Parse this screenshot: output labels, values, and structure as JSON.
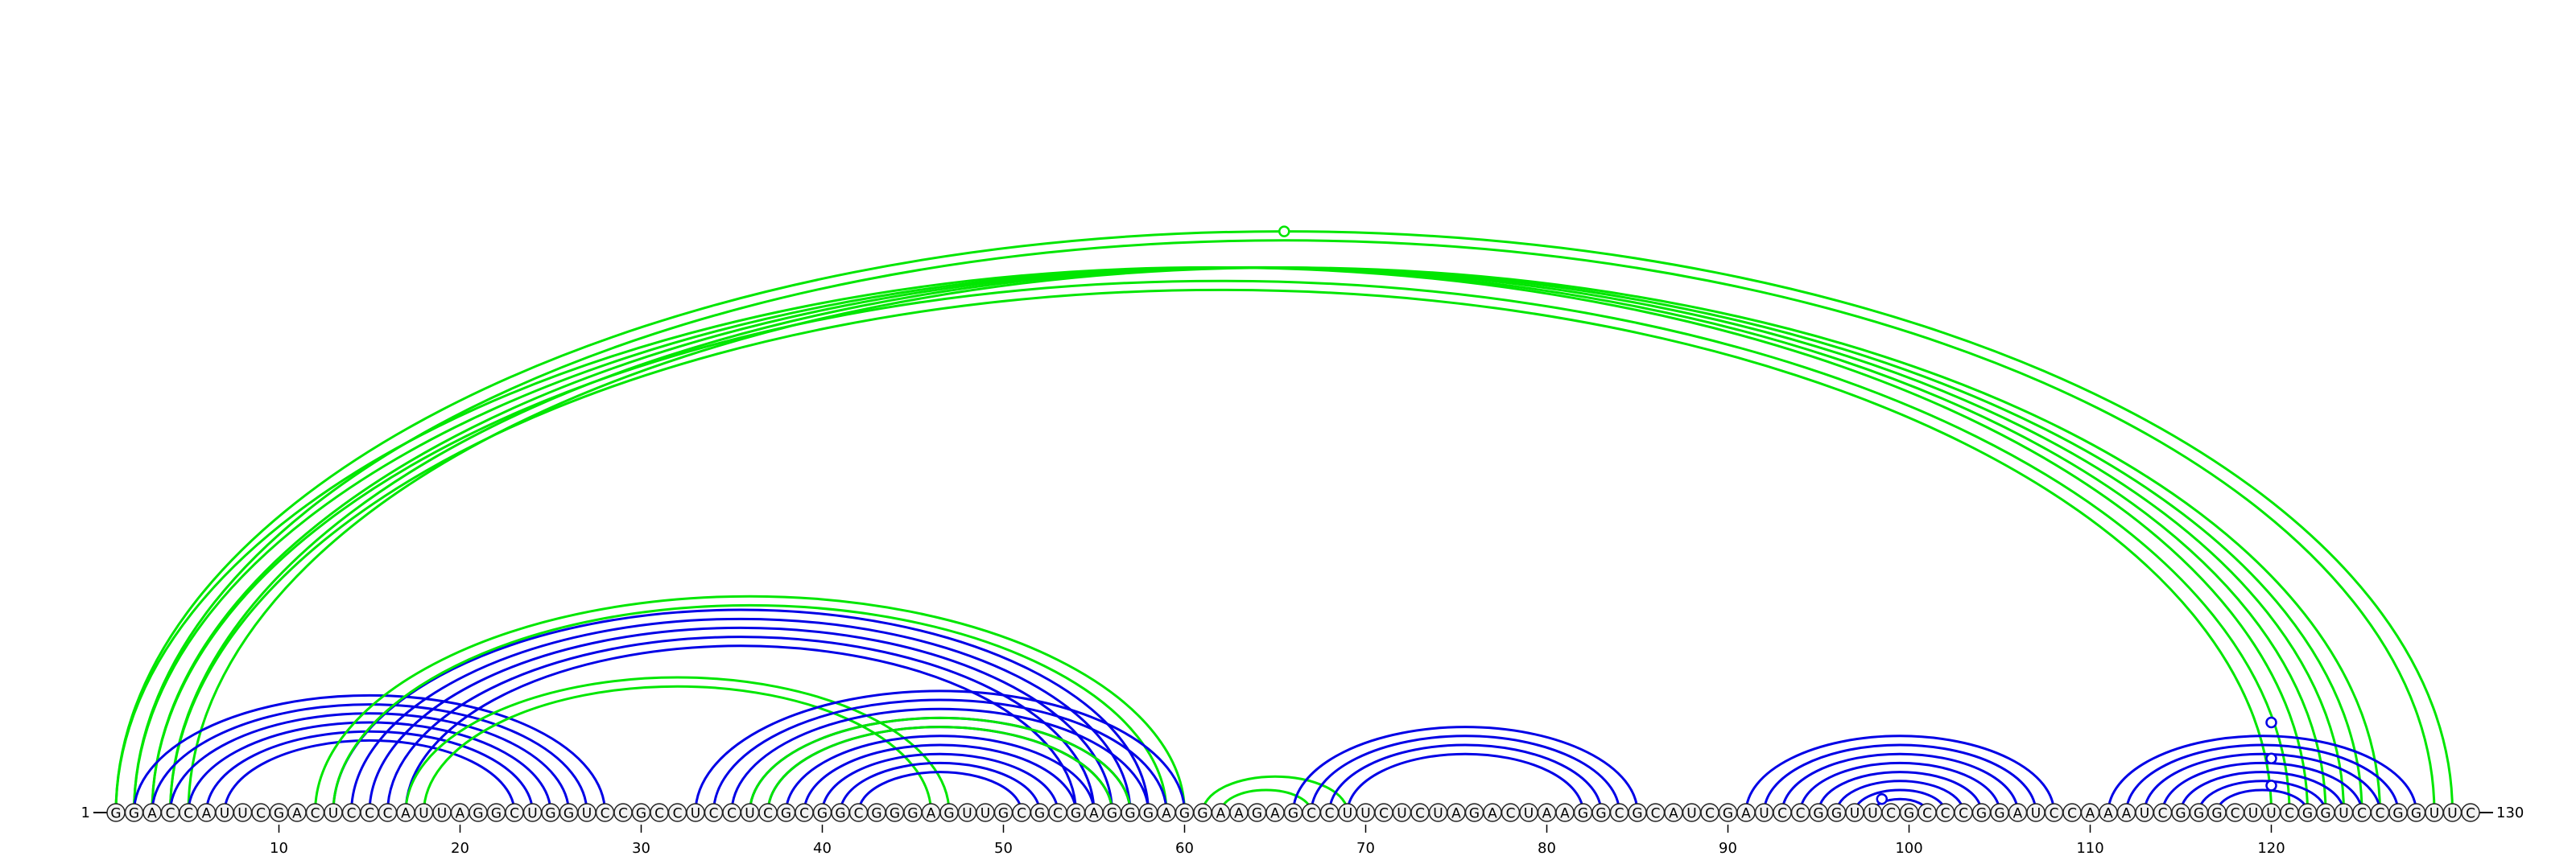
{
  "sequence": "GGACCAUUCGACUCCCAUUAGGCUGGUCCGCCUCCUCGCGGCGGGAGUUGCGCGAGGGAGGAAGAGCCUUCUCUAGACUAAGGCGCAUCGAUCCGGUUCGCCCGGAUCCAAAUCGGGCUUCGGUCCGGUUC",
  "start_label": "1",
  "end_label": "130",
  "tick_labels": [
    "10",
    "20",
    "30",
    "40",
    "50",
    "60",
    "70",
    "80",
    "90",
    "100",
    "110",
    "120"
  ],
  "colors": {
    "blue": "#0000e6",
    "green": "#00e600"
  },
  "arcs": [
    {
      "i": 1,
      "j": 130,
      "color": "green"
    },
    {
      "i": 2,
      "j": 129,
      "color": "green"
    },
    {
      "i": 1,
      "j": 122,
      "color": "green"
    },
    {
      "i": 2,
      "j": 123,
      "color": "green"
    },
    {
      "i": 3,
      "j": 124,
      "color": "green"
    },
    {
      "i": 4,
      "j": 125,
      "color": "green"
    },
    {
      "i": 5,
      "j": 126,
      "color": "green"
    },
    {
      "i": 3,
      "j": 121,
      "color": "green"
    },
    {
      "i": 4,
      "j": 120,
      "color": "green"
    },
    {
      "i": 2,
      "j": 28,
      "color": "blue"
    },
    {
      "i": 3,
      "j": 27,
      "color": "blue"
    },
    {
      "i": 4,
      "j": 26,
      "color": "blue"
    },
    {
      "i": 5,
      "j": 25,
      "color": "blue"
    },
    {
      "i": 6,
      "j": 24,
      "color": "blue"
    },
    {
      "i": 7,
      "j": 23,
      "color": "blue"
    },
    {
      "i": 13,
      "j": 58,
      "color": "blue"
    },
    {
      "i": 14,
      "j": 57,
      "color": "blue"
    },
    {
      "i": 15,
      "j": 56,
      "color": "blue"
    },
    {
      "i": 16,
      "j": 55,
      "color": "blue"
    },
    {
      "i": 17,
      "j": 54,
      "color": "blue"
    },
    {
      "i": 12,
      "j": 60,
      "color": "green"
    },
    {
      "i": 13,
      "j": 59,
      "color": "green"
    },
    {
      "i": 17,
      "j": 47,
      "color": "green"
    },
    {
      "i": 18,
      "j": 46,
      "color": "green"
    },
    {
      "i": 33,
      "j": 60,
      "color": "blue"
    },
    {
      "i": 34,
      "j": 59,
      "color": "blue"
    },
    {
      "i": 35,
      "j": 58,
      "color": "blue"
    },
    {
      "i": 36,
      "j": 57,
      "color": "blue"
    },
    {
      "i": 37,
      "j": 56,
      "color": "blue"
    },
    {
      "i": 38,
      "j": 55,
      "color": "blue"
    },
    {
      "i": 39,
      "j": 54,
      "color": "blue"
    },
    {
      "i": 40,
      "j": 53,
      "color": "blue"
    },
    {
      "i": 41,
      "j": 52,
      "color": "blue"
    },
    {
      "i": 42,
      "j": 51,
      "color": "blue"
    },
    {
      "i": 36,
      "j": 57,
      "color": "green"
    },
    {
      "i": 37,
      "j": 56,
      "color": "green"
    },
    {
      "i": 61,
      "j": 69,
      "color": "green"
    },
    {
      "i": 62,
      "j": 67,
      "color": "green"
    },
    {
      "i": 66,
      "j": 85,
      "color": "blue"
    },
    {
      "i": 67,
      "j": 84,
      "color": "blue"
    },
    {
      "i": 68,
      "j": 83,
      "color": "blue"
    },
    {
      "i": 69,
      "j": 82,
      "color": "blue"
    },
    {
      "i": 91,
      "j": 108,
      "color": "blue"
    },
    {
      "i": 92,
      "j": 107,
      "color": "blue"
    },
    {
      "i": 93,
      "j": 106,
      "color": "blue"
    },
    {
      "i": 94,
      "j": 105,
      "color": "blue"
    },
    {
      "i": 95,
      "j": 104,
      "color": "blue"
    },
    {
      "i": 96,
      "j": 103,
      "color": "blue"
    },
    {
      "i": 97,
      "j": 102,
      "color": "blue"
    },
    {
      "i": 98,
      "j": 101,
      "color": "blue"
    },
    {
      "i": 111,
      "j": 128,
      "color": "blue"
    },
    {
      "i": 112,
      "j": 127,
      "color": "blue"
    },
    {
      "i": 113,
      "j": 126,
      "color": "blue"
    },
    {
      "i": 114,
      "j": 125,
      "color": "blue"
    },
    {
      "i": 115,
      "j": 124,
      "color": "blue"
    },
    {
      "i": 116,
      "j": 123,
      "color": "blue"
    },
    {
      "i": 117,
      "j": 122,
      "color": "blue"
    }
  ],
  "markers": [
    {
      "pos": 65.5,
      "height_units": 64.5,
      "color": "green"
    },
    {
      "pos": 98.5,
      "height_units": 1.5,
      "color": "blue"
    },
    {
      "pos": 120,
      "height_units": 3,
      "color": "blue"
    },
    {
      "pos": 120,
      "height_units": 6,
      "color": "blue"
    },
    {
      "pos": 120,
      "height_units": 10,
      "color": "blue"
    }
  ]
}
